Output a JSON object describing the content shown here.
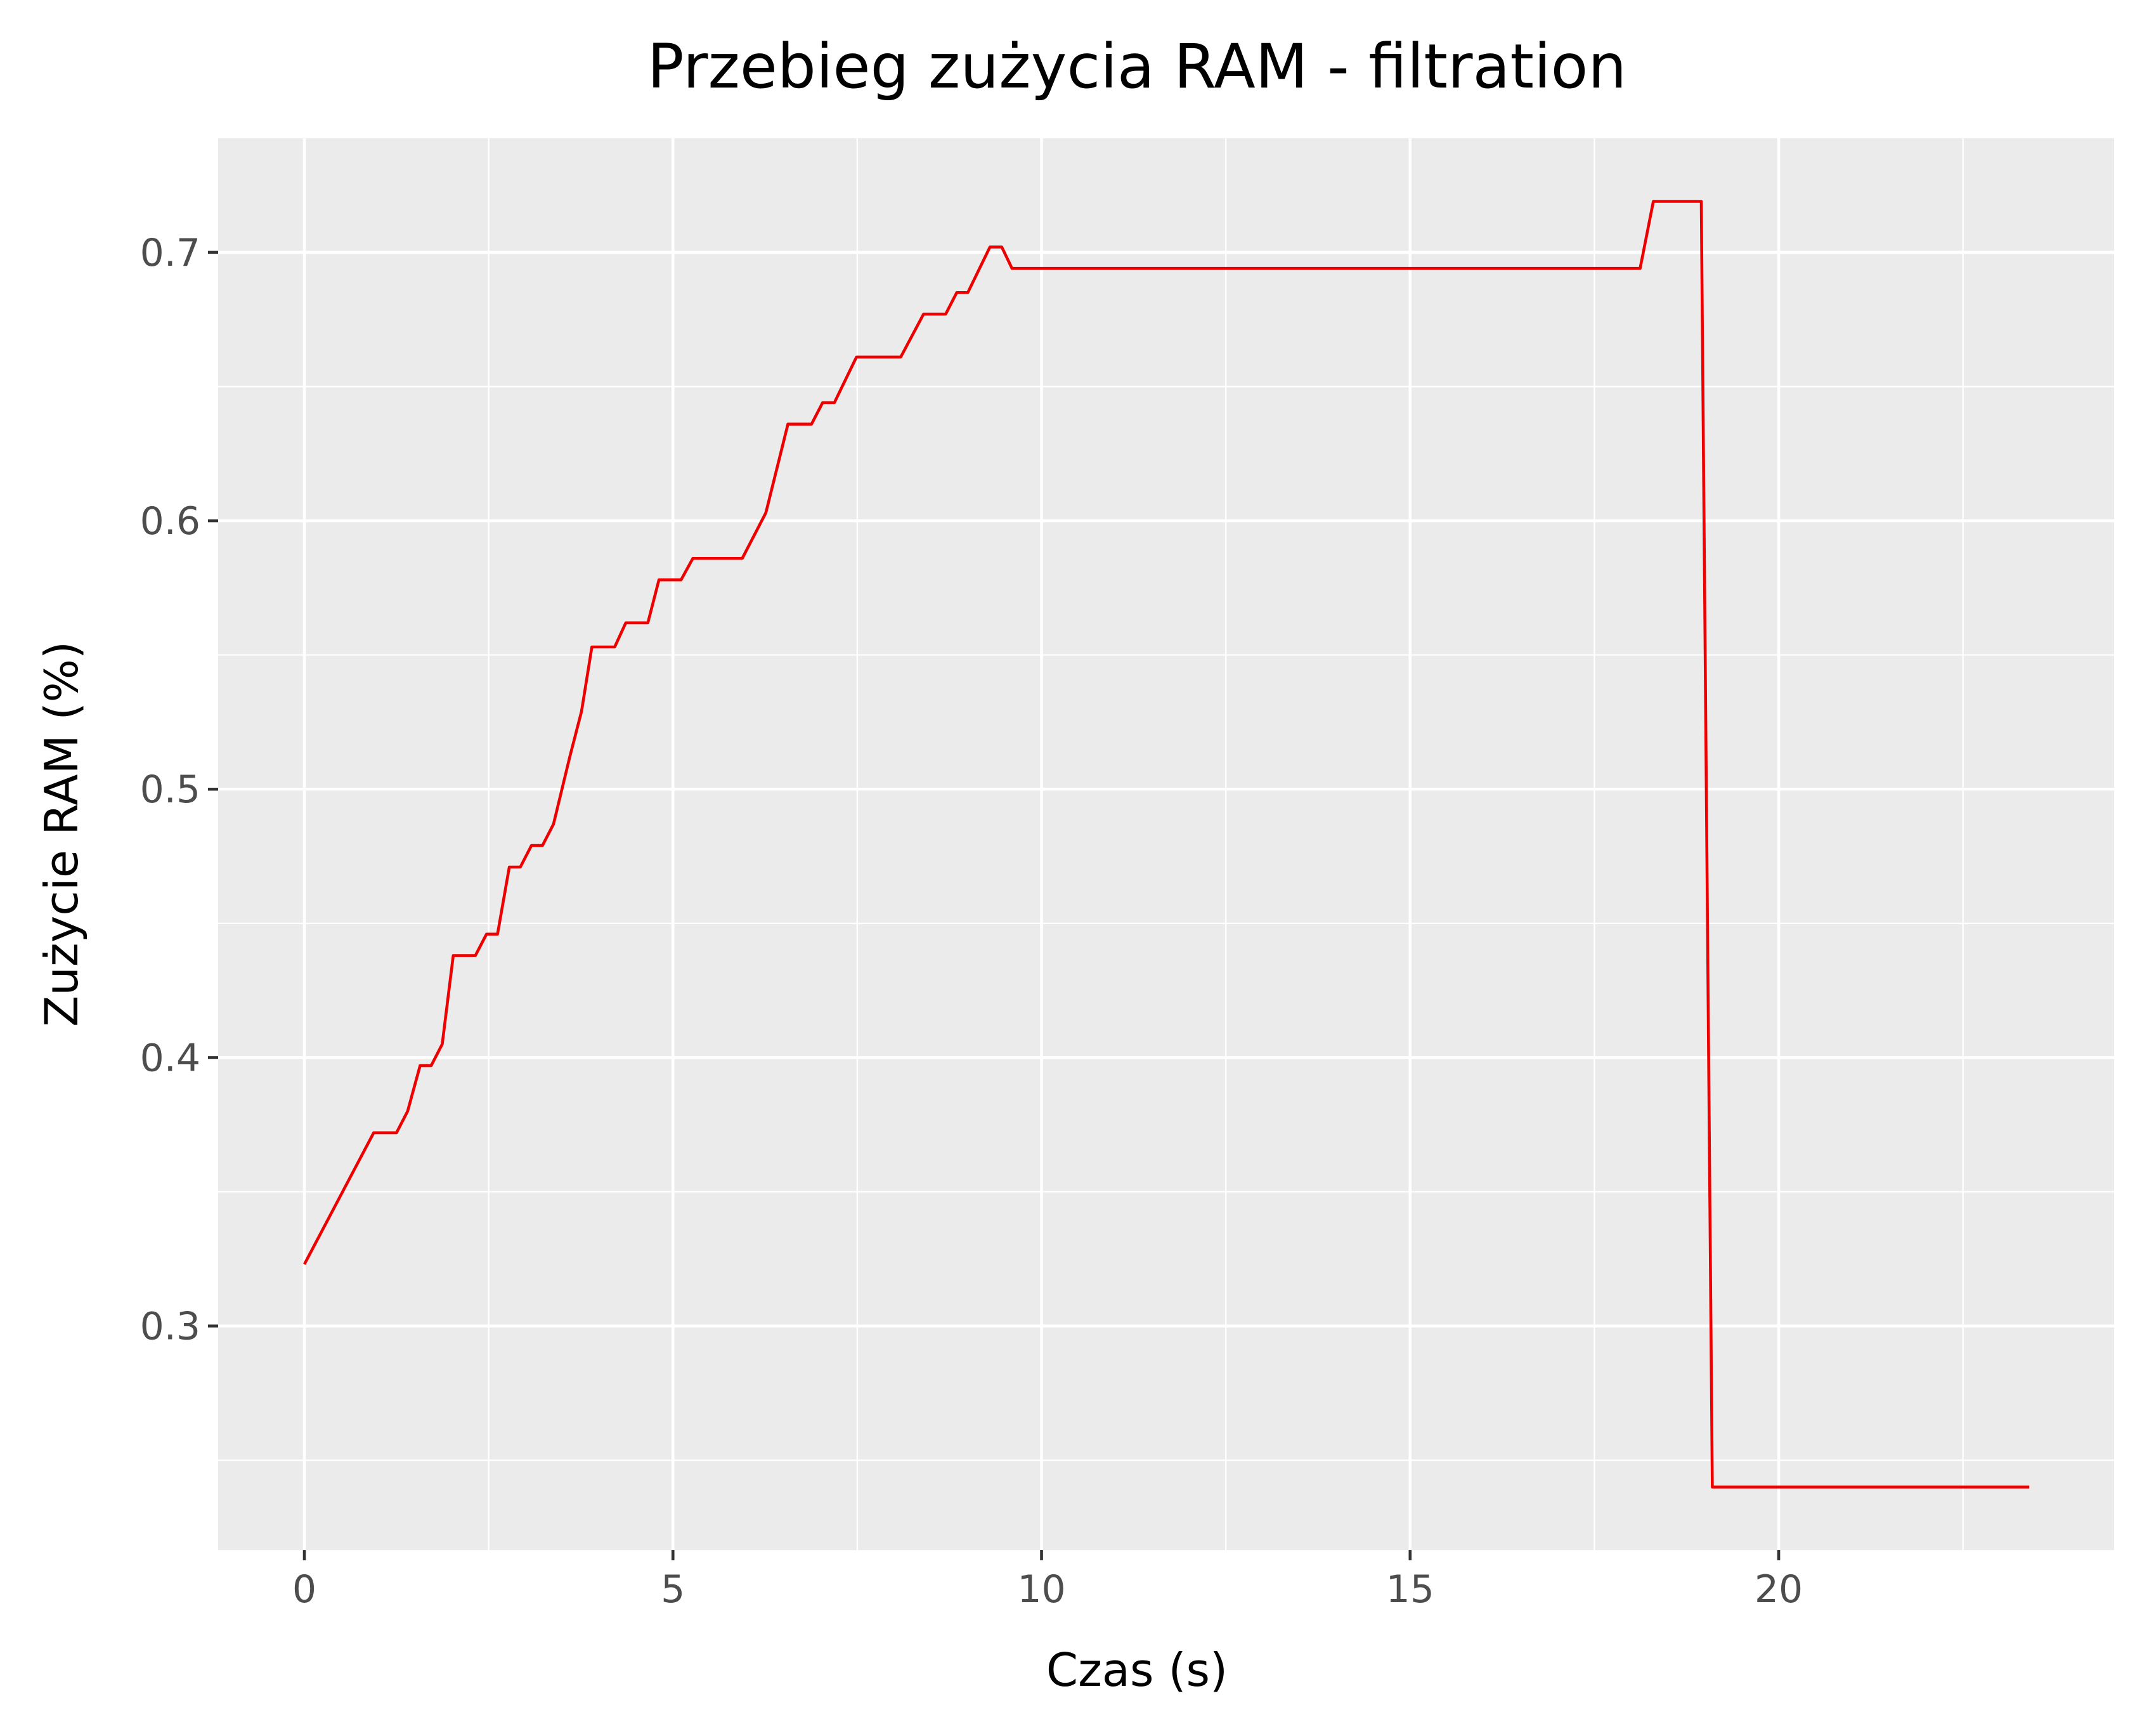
{
  "chart_data": {
    "type": "line",
    "title": "Przebieg zużycia RAM - filtration",
    "xlabel": "Czas (s)",
    "ylabel": "Zużycie RAM (%)",
    "xlim": [
      -1.17,
      24.55
    ],
    "ylim": [
      0.2165,
      0.7425
    ],
    "x_ticks": [
      0,
      5,
      10,
      15,
      20
    ],
    "x_tick_labels": [
      "0",
      "5",
      "10",
      "15",
      "20"
    ],
    "x_minor_ticks": [
      2.5,
      7.5,
      12.5,
      17.5,
      22.5
    ],
    "y_ticks": [
      0.3,
      0.4,
      0.5,
      0.6,
      0.7
    ],
    "y_tick_labels": [
      "0.3",
      "0.4",
      "0.5",
      "0.6",
      "0.7"
    ],
    "y_minor_ticks": [
      0.25,
      0.35,
      0.45,
      0.55,
      0.65
    ],
    "grid": true,
    "line_color": "#ee0000",
    "panel_color": "#ebebeb",
    "series": [
      {
        "x": [
          0,
          0.94,
          1.25,
          1.4,
          1.57,
          1.72,
          1.87,
          2.02,
          2.32,
          2.47,
          2.62,
          2.78,
          2.93,
          3.08,
          3.23,
          3.38,
          3.6,
          3.76,
          3.9,
          4.21,
          4.36,
          4.66,
          4.81,
          5.11,
          5.27,
          5.94,
          6.26,
          6.56,
          6.88,
          7.03,
          7.19,
          7.49,
          8.09,
          8.4,
          8.7,
          8.85,
          9.0,
          9.3,
          9.46,
          9.6,
          18.12,
          18.3,
          18.95,
          19.1,
          23.4
        ],
        "y": [
          0.323,
          0.372,
          0.372,
          0.38,
          0.397,
          0.397,
          0.405,
          0.438,
          0.438,
          0.446,
          0.446,
          0.471,
          0.471,
          0.479,
          0.479,
          0.487,
          0.512,
          0.529,
          0.553,
          0.553,
          0.562,
          0.562,
          0.578,
          0.578,
          0.586,
          0.586,
          0.603,
          0.636,
          0.636,
          0.644,
          0.644,
          0.661,
          0.661,
          0.677,
          0.677,
          0.685,
          0.685,
          0.702,
          0.702,
          0.694,
          0.694,
          0.719,
          0.719,
          0.24,
          0.24
        ]
      }
    ]
  }
}
